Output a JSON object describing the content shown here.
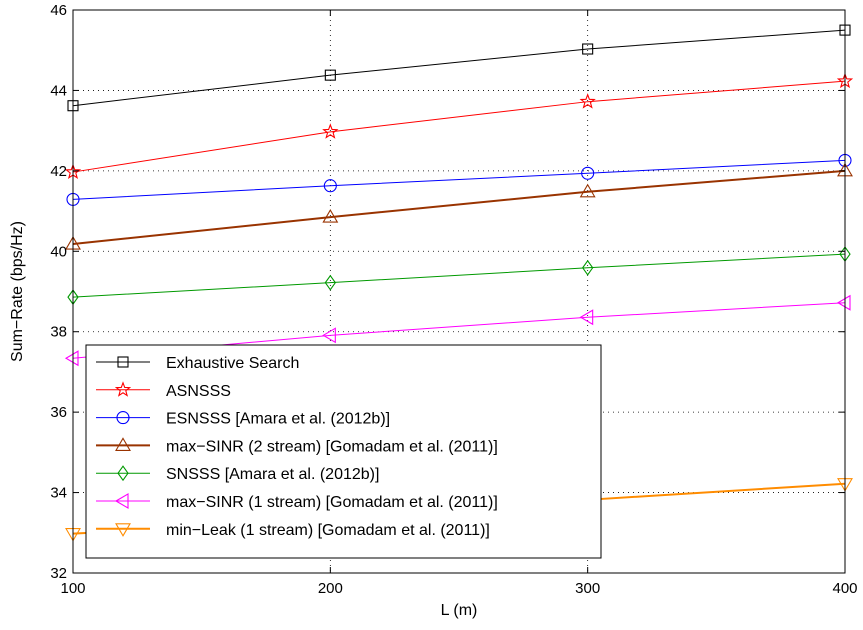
{
  "chart_data": {
    "type": "line",
    "x": [
      100,
      200,
      300,
      400
    ],
    "xlabel": "L (m)",
    "ylabel": "Sum−Rate (bps/Hz)",
    "xlim": [
      100,
      400
    ],
    "ylim": [
      32,
      46
    ],
    "xticks": [
      "100",
      "200",
      "300",
      "400"
    ],
    "yticks": [
      "32",
      "34",
      "36",
      "38",
      "40",
      "42",
      "44",
      "46"
    ],
    "grid": true,
    "legend_position": "bottom-left",
    "series": [
      {
        "name": "Exhaustive Search",
        "values": [
          43.62,
          44.38,
          45.03,
          45.5
        ],
        "color": "#000000",
        "marker": "square",
        "line_width": 1
      },
      {
        "name": "ASNSSS",
        "values": [
          41.97,
          42.97,
          43.72,
          44.23
        ],
        "color": "#ff0000",
        "marker": "star",
        "line_width": 1
      },
      {
        "name": "ESNSSS [Amara et al. (2012b)]",
        "values": [
          41.29,
          41.63,
          41.94,
          42.26
        ],
        "color": "#0000ff",
        "marker": "circle",
        "line_width": 1
      },
      {
        "name": "max−SINR (2 stream) [Gomadam et al. (2011)]",
        "values": [
          40.18,
          40.85,
          41.48,
          42.0
        ],
        "color": "#993300",
        "marker": "triangle-up",
        "line_width": 2
      },
      {
        "name": "SNSSS [Amara et al. (2012b)]",
        "values": [
          38.86,
          39.22,
          39.59,
          39.93
        ],
        "color": "#009900",
        "marker": "diamond",
        "line_width": 1
      },
      {
        "name": "max−SINR (1 stream) [Gomadam et al. (2011)]",
        "values": [
          37.34,
          37.91,
          38.36,
          38.72
        ],
        "color": "#ff00ff",
        "marker": "triangle-left",
        "line_width": 1
      },
      {
        "name": "min−Leak (1 stream) [Gomadam et al. (2011)]",
        "values": [
          32.98,
          33.3,
          33.82,
          34.22
        ],
        "color": "#ff8c00",
        "marker": "triangle-down",
        "line_width": 2
      }
    ]
  }
}
